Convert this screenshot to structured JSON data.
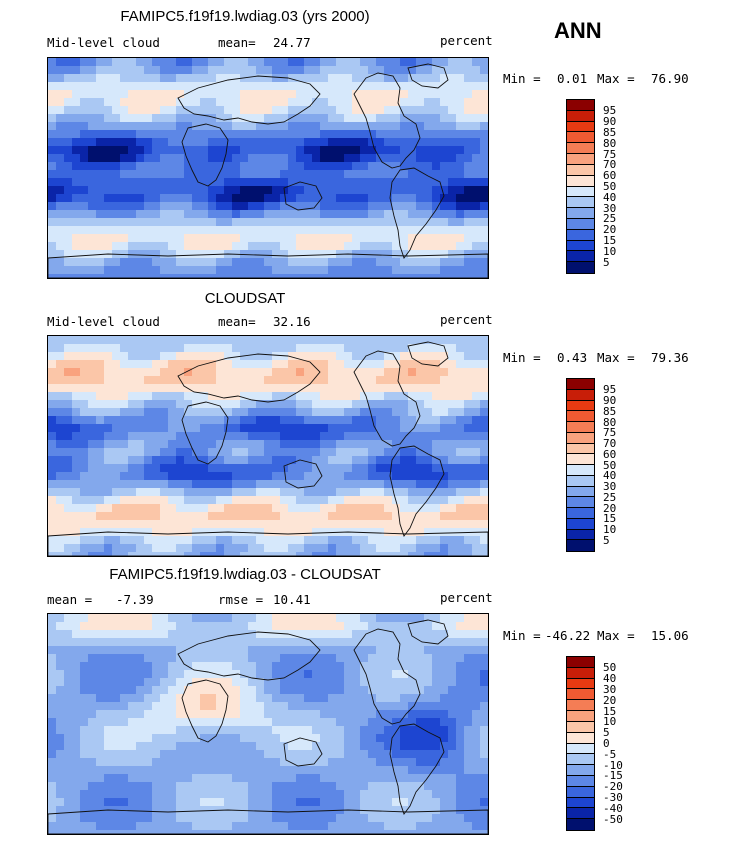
{
  "season": "ANN",
  "chart_data": [
    {
      "type": "heatmap",
      "title": "FAMIPC5.f19f19.lwdiag.03 (yrs 2000)",
      "field": "Mid-level cloud",
      "stat_label": "mean=",
      "stat_value": "24.77",
      "units": "percent",
      "min_label": "Min =",
      "min": "0.01",
      "max_label": "Max =",
      "max": "76.90",
      "colorbar_levels": [
        "95",
        "90",
        "85",
        "80",
        "75",
        "70",
        "60",
        "50",
        "40",
        "30",
        "25",
        "20",
        "15",
        "10",
        "5"
      ],
      "colorbar_colors": [
        "#8b0000",
        "#c81e08",
        "#e83a12",
        "#f05a32",
        "#f47d55",
        "#f9a27e",
        "#fbc6a8",
        "#fde5d6",
        "#d6e8fb",
        "#aac8f3",
        "#83a8ec",
        "#5d87e6",
        "#3a66de",
        "#1d45d1",
        "#0a24a8",
        "#00106e"
      ]
    },
    {
      "type": "heatmap",
      "title": "CLOUDSAT",
      "field": "Mid-level cloud",
      "stat_label": "mean=",
      "stat_value": "32.16",
      "units": "percent",
      "min_label": "Min =",
      "min": "0.43",
      "max_label": "Max =",
      "max": "79.36",
      "colorbar_levels": [
        "95",
        "90",
        "85",
        "80",
        "75",
        "70",
        "60",
        "50",
        "40",
        "30",
        "25",
        "20",
        "15",
        "10",
        "5"
      ],
      "colorbar_colors": [
        "#8b0000",
        "#c81e08",
        "#e83a12",
        "#f05a32",
        "#f47d55",
        "#f9a27e",
        "#fbc6a8",
        "#fde5d6",
        "#d6e8fb",
        "#aac8f3",
        "#83a8ec",
        "#5d87e6",
        "#3a66de",
        "#1d45d1",
        "#0a24a8",
        "#00106e"
      ]
    },
    {
      "type": "heatmap",
      "title": "FAMIPC5.f19f19.lwdiag.03 - CLOUDSAT",
      "stat_label": "mean =",
      "stat_value": "-7.39",
      "stat2_label": "rmse =",
      "stat2_value": "10.41",
      "units": "percent",
      "min_label": "Min =",
      "min": "-46.22",
      "max_label": "Max =",
      "max": "15.06",
      "colorbar_levels": [
        "50",
        "40",
        "30",
        "20",
        "15",
        "10",
        "5",
        "0",
        "-5",
        "-10",
        "-15",
        "-20",
        "-30",
        "-40",
        "-50"
      ],
      "colorbar_colors": [
        "#8b0000",
        "#c81e08",
        "#e83a12",
        "#f05a32",
        "#f47d55",
        "#f9a27e",
        "#fbc6a8",
        "#fde5d6",
        "#d6e8fb",
        "#aac8f3",
        "#83a8ec",
        "#5d87e6",
        "#3a66de",
        "#1d45d1",
        "#0a24a8",
        "#00106e"
      ]
    }
  ]
}
